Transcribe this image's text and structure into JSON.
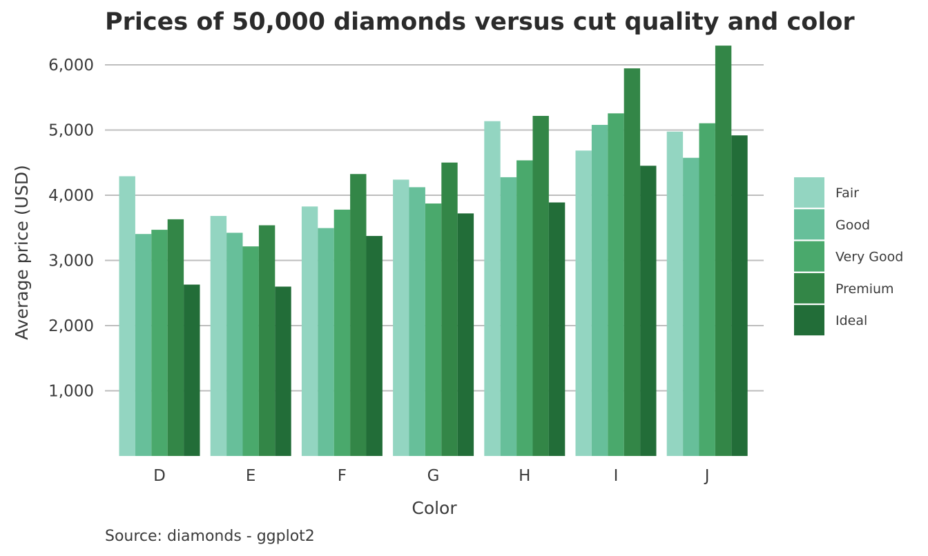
{
  "chart_data": {
    "type": "bar",
    "title": "Prices of 50,000 diamonds versus cut quality and color",
    "xlabel": "Color",
    "ylabel": "Average price (USD)",
    "caption": "Source: diamonds - ggplot2",
    "categories": [
      "D",
      "E",
      "F",
      "G",
      "H",
      "I",
      "J"
    ],
    "ylim": [
      0,
      6300
    ],
    "yticks": [
      1000,
      2000,
      3000,
      4000,
      5000,
      6000
    ],
    "ytick_labels": [
      "1,000",
      "2,000",
      "3,000",
      "4,000",
      "5,000",
      "6,000"
    ],
    "grid": "horizontal",
    "legend_position": "right",
    "series": [
      {
        "name": "Fair",
        "color": "#93d5c1",
        "values": [
          4291,
          3682,
          3827,
          4239,
          5136,
          4685,
          4976
        ]
      },
      {
        "name": "Good",
        "color": "#67bf9a",
        "values": [
          3405,
          3424,
          3496,
          4123,
          4276,
          5079,
          4574
        ]
      },
      {
        "name": "Very Good",
        "color": "#4aa96c",
        "values": [
          3470,
          3215,
          3779,
          3873,
          4535,
          5256,
          5104
        ]
      },
      {
        "name": "Premium",
        "color": "#338647",
        "values": [
          3631,
          3539,
          4325,
          4501,
          5217,
          5946,
          6295
        ]
      },
      {
        "name": "Ideal",
        "color": "#226d38",
        "values": [
          2629,
          2598,
          3375,
          3721,
          3889,
          4452,
          4918
        ]
      }
    ]
  }
}
